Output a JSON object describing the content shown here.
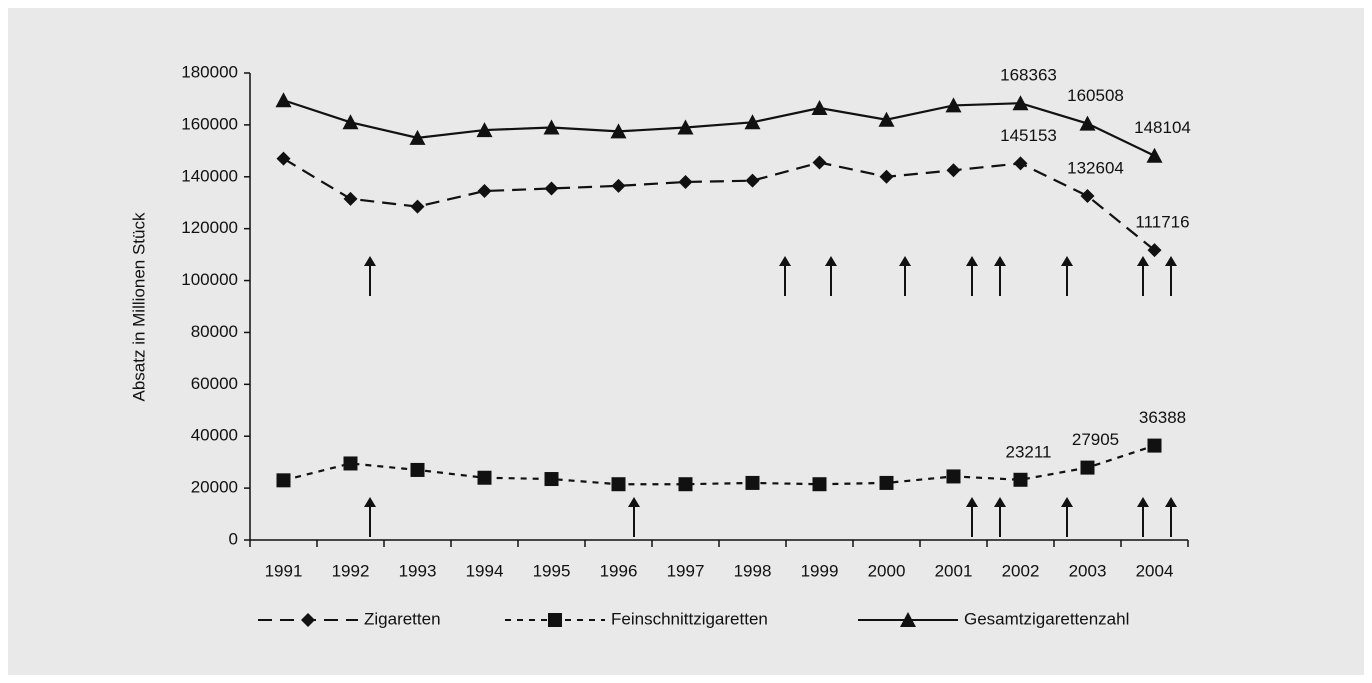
{
  "chart_data": {
    "type": "line",
    "y_label": "Absatz in Millionen Stück",
    "categories": [
      "1991",
      "1992",
      "1993",
      "1994",
      "1995",
      "1996",
      "1997",
      "1998",
      "1999",
      "2000",
      "2001",
      "2002",
      "2003",
      "2004"
    ],
    "series": [
      {
        "name": "Zigaretten",
        "color": "#111111",
        "dash": "long",
        "marker": "diamond",
        "values": [
          147000,
          131500,
          128500,
          134500,
          135500,
          136500,
          138000,
          138500,
          145500,
          140000,
          142500,
          145153,
          132604,
          111716
        ],
        "value_labels": [
          null,
          null,
          null,
          null,
          null,
          null,
          null,
          null,
          null,
          null,
          null,
          "145153",
          "132604",
          "111716"
        ]
      },
      {
        "name": "Feinschnittzigaretten",
        "color": "#111111",
        "dash": "short",
        "marker": "square",
        "values": [
          23000,
          29500,
          27000,
          24000,
          23500,
          21500,
          21500,
          22000,
          21500,
          22000,
          24500,
          23211,
          27905,
          36388
        ],
        "value_labels": [
          null,
          null,
          null,
          null,
          null,
          null,
          null,
          null,
          null,
          null,
          null,
          "23211",
          "27905",
          "36388"
        ]
      },
      {
        "name": "Gesamtzigarettenzahl",
        "color": "#111111",
        "dash": "solid",
        "marker": "triangle",
        "values": [
          169500,
          161000,
          155000,
          158000,
          159000,
          157500,
          159000,
          161000,
          166500,
          162000,
          167500,
          168363,
          160508,
          148104
        ],
        "value_labels": [
          null,
          null,
          null,
          null,
          null,
          null,
          null,
          null,
          null,
          null,
          null,
          "168363",
          "160508",
          "148104"
        ]
      }
    ],
    "ylim": [
      0,
      180000
    ],
    "yticks": [
      0,
      20000,
      40000,
      60000,
      80000,
      100000,
      120000,
      140000,
      160000,
      180000
    ]
  }
}
